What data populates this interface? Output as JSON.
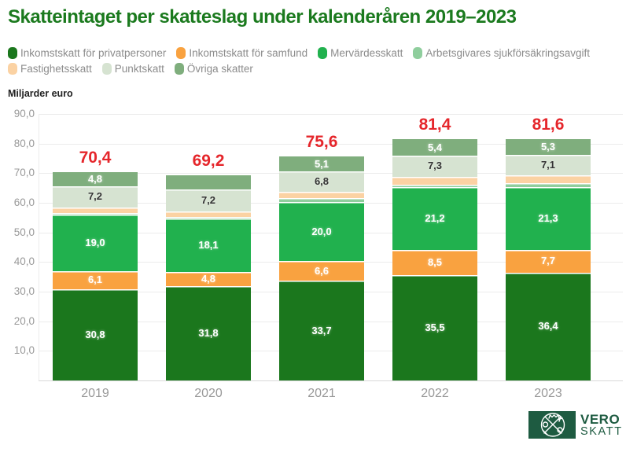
{
  "title": "Skatteintaget per skatteslag under kalenderåren 2019–2023",
  "y_axis_title": "Miljarder euro",
  "colors": {
    "title": "#1B7A1E",
    "total": "#E5262B",
    "legend_text": "#8C8C8C",
    "axis_text": "#999999",
    "grid": "#ECECEC",
    "baseline": "#D9D9D9",
    "logo": "#1E5B41"
  },
  "chart_data": {
    "type": "bar",
    "stacked": true,
    "title": "Skatteintaget per skatteslag under kalenderåren 2019–2023",
    "ylabel": "Miljarder euro",
    "categories": [
      "2019",
      "2020",
      "2021",
      "2022",
      "2023"
    ],
    "series": [
      {
        "name": "Inkomstskatt för privatpersoner",
        "color": "#1B771D",
        "label_color": "#FFFFFF",
        "values": [
          30.8,
          31.8,
          33.7,
          35.5,
          36.4
        ],
        "labels": [
          "30,8",
          "31,8",
          "33,7",
          "35,5",
          "36,4"
        ]
      },
      {
        "name": "Inkomstskatt för samfund",
        "color": "#F9A240",
        "label_color": "#FFFFFF",
        "values": [
          6.1,
          4.8,
          6.6,
          8.5,
          7.7
        ],
        "labels": [
          "6,1",
          "4,8",
          "6,6",
          "8,5",
          "7,7"
        ]
      },
      {
        "name": "Mervärdesskatt",
        "color": "#21B14E",
        "label_color": "#FFFFFF",
        "values": [
          19.0,
          18.1,
          20.0,
          21.2,
          21.3
        ],
        "labels": [
          "19,0",
          "18,1",
          "20,0",
          "21,2",
          "21,3"
        ]
      },
      {
        "name": "Arbetsgivares sjukförsäkringsavgift",
        "color": "#8FCE9D",
        "label_color": "#FFFFFF",
        "values": [
          0.6,
          0.5,
          1.4,
          1.0,
          1.3
        ],
        "labels": [
          null,
          null,
          null,
          null,
          null
        ]
      },
      {
        "name": "Fastighetsskatt",
        "color": "#FBD2A3",
        "label_color": "#333333",
        "values": [
          1.9,
          2.0,
          2.0,
          2.5,
          2.5
        ],
        "labels": [
          null,
          null,
          null,
          null,
          null
        ]
      },
      {
        "name": "Punktskatt",
        "color": "#D6E3D1",
        "label_color": "#333333",
        "values": [
          7.2,
          7.2,
          6.8,
          7.3,
          7.1
        ],
        "labels": [
          "7,2",
          "7,2",
          "6,8",
          "7,3",
          "7,1"
        ]
      },
      {
        "name": "Övriga skatter",
        "color": "#7FAE7D",
        "label_color": "#FFFFFF",
        "values": [
          4.8,
          4.8,
          5.1,
          5.4,
          5.3
        ],
        "labels": [
          "4,8",
          null,
          "5,1",
          "5,4",
          "5,3"
        ]
      }
    ],
    "totals": [
      70.4,
      69.2,
      75.6,
      81.4,
      81.6
    ],
    "total_labels": [
      "70,4",
      "69,2",
      "75,6",
      "81,4",
      "81,6"
    ],
    "ylim": [
      0,
      90
    ],
    "y_tick_values": [
      90,
      80,
      70,
      60,
      50,
      40,
      30,
      20,
      10
    ],
    "y_tick_labels": [
      "90,0",
      "80,0",
      "70,0",
      "60,0",
      "50,0",
      "40,0",
      "30,0",
      "20,0",
      "10,0"
    ],
    "grid": true,
    "legend_position": "top"
  },
  "logo": {
    "line1": "VERO",
    "line2": "SKATT"
  }
}
